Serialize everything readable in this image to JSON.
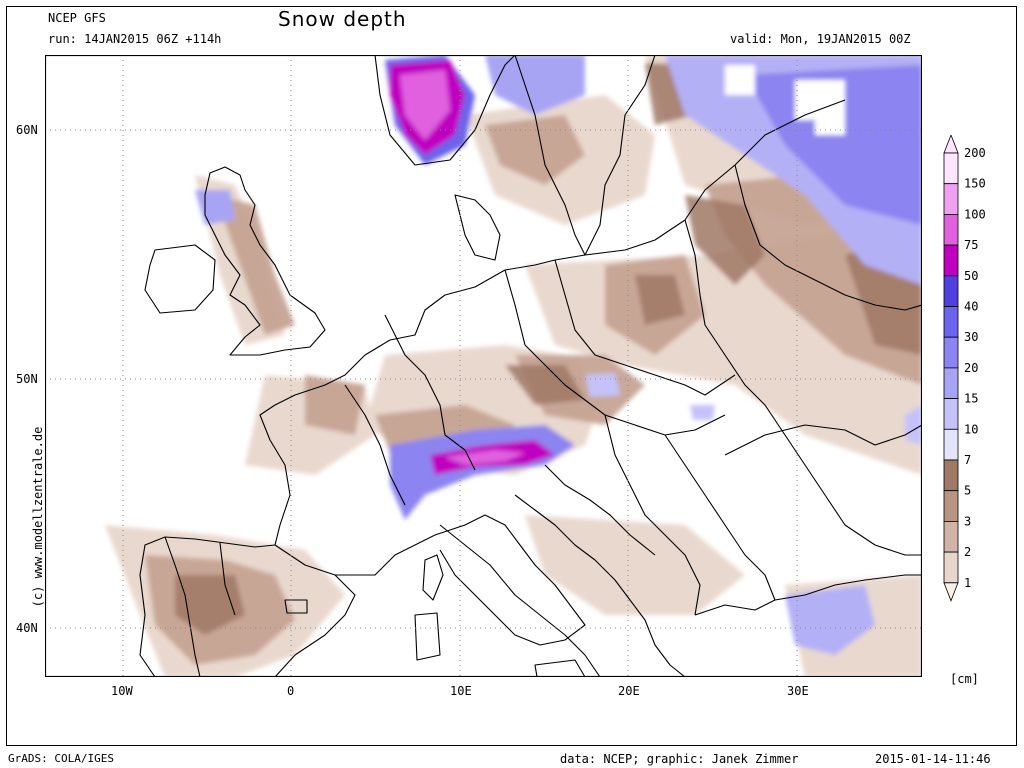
{
  "header": {
    "model": "NCEP GFS",
    "run": "run: 14JAN2015 06Z +114h",
    "title": "Snow depth",
    "valid": "valid: Mon, 19JAN2015 00Z"
  },
  "axes": {
    "lat_labels": [
      "60N",
      "50N",
      "40N"
    ],
    "lon_labels": [
      "10W",
      "0",
      "10E",
      "20E",
      "30E"
    ]
  },
  "legend": {
    "levels": [
      "200",
      "150",
      "100",
      "75",
      "50",
      "40",
      "30",
      "20",
      "15",
      "10",
      "7",
      "5",
      "3",
      "2",
      "1"
    ],
    "colors": [
      "#ffe6ff",
      "#f0a0f0",
      "#e060e0",
      "#c000c0",
      "#5040e0",
      "#6c64ec",
      "#8c84f0",
      "#a8a4f4",
      "#c4c2f8",
      "#e4e4fc",
      "#a07866",
      "#b89484",
      "#d0b4a6",
      "#e8d6cc",
      "#faf0ea"
    ],
    "unit": "[cm]"
  },
  "watermark": "(c) www.modellzentrale.de",
  "footer": {
    "left": "GrADS: COLA/IGES",
    "credit": "data: NCEP; graphic: Janek Zimmer",
    "timestamp": "2015-01-14-11:46"
  }
}
